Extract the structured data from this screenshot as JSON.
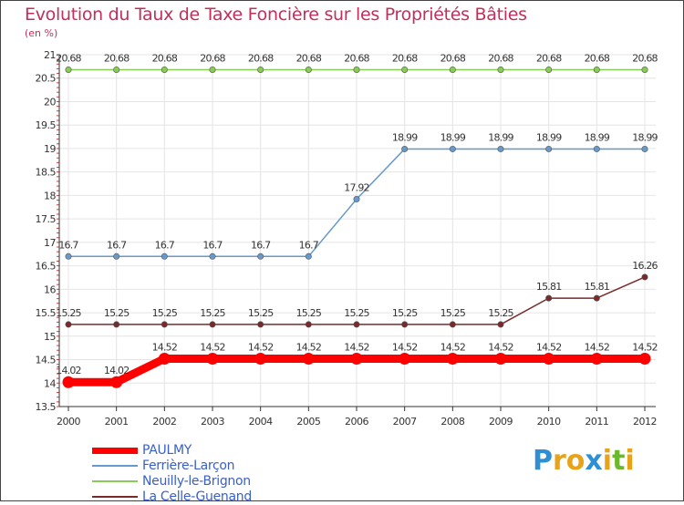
{
  "title": "Evolution du Taux de Taxe Foncière sur les Propriétés Bâties",
  "subtitle": "(en %)",
  "logo": {
    "letters": [
      "P",
      "r",
      "o",
      "x",
      "i",
      "t",
      "i"
    ],
    "colors": [
      "#2e8fd4",
      "#e8a318",
      "#e8a318",
      "#2e8fd4",
      "#e8a318",
      "#6cb92b",
      "#e8a318"
    ]
  },
  "chart_data": {
    "type": "line",
    "title": "Evolution du Taux de Taxe Foncière sur les Propriétés Bâties",
    "ylabel": "(en %)",
    "xlabel": "",
    "ylim": [
      13.5,
      21
    ],
    "yticks": [
      "13.5",
      "14",
      "14.5",
      "15",
      "15.5",
      "16",
      "16.5",
      "17",
      "17.5",
      "18",
      "18.5",
      "19",
      "19.5",
      "20",
      "20.5",
      "21"
    ],
    "x": [
      "2000",
      "2001",
      "2002",
      "2003",
      "2004",
      "2005",
      "2006",
      "2007",
      "2008",
      "2009",
      "2010",
      "2011",
      "2012"
    ],
    "series": [
      {
        "name": "PAULMY",
        "color": "#ff0000",
        "values": [
          14.02,
          14.02,
          14.52,
          14.52,
          14.52,
          14.52,
          14.52,
          14.52,
          14.52,
          14.52,
          14.52,
          14.52,
          14.52
        ],
        "labels": [
          "14.02",
          "14.02",
          "14.52",
          "14.52",
          "14.52",
          "14.52",
          "14.52",
          "14.52",
          "14.52",
          "14.52",
          "14.52",
          "14.52",
          "14.52"
        ]
      },
      {
        "name": "Ferrière-Larçon",
        "color": "#6699cc",
        "values": [
          16.7,
          16.7,
          16.7,
          16.7,
          16.7,
          16.7,
          17.92,
          18.99,
          18.99,
          18.99,
          18.99,
          18.99,
          18.99
        ],
        "labels": [
          "16.7",
          "16.7",
          "16.7",
          "16.7",
          "16.7",
          "16.7",
          "17.92",
          "18.99",
          "18.99",
          "18.99",
          "18.99",
          "18.99",
          "18.99"
        ]
      },
      {
        "name": "Neuilly-le-Brignon",
        "color": "#88cc55",
        "values": [
          20.68,
          20.68,
          20.68,
          20.68,
          20.68,
          20.68,
          20.68,
          20.68,
          20.68,
          20.68,
          20.68,
          20.68,
          20.68
        ],
        "labels": [
          "20.68",
          "20.68",
          "20.68",
          "20.68",
          "20.68",
          "20.68",
          "20.68",
          "20.68",
          "20.68",
          "20.68",
          "20.68",
          "20.68",
          "20.68"
        ]
      },
      {
        "name": "La Celle-Guenand",
        "color": "#7a2a2a",
        "values": [
          15.25,
          15.25,
          15.25,
          15.25,
          15.25,
          15.25,
          15.25,
          15.25,
          15.25,
          15.25,
          15.81,
          15.81,
          16.26
        ],
        "labels": [
          "15.25",
          "15.25",
          "15.25",
          "15.25",
          "15.25",
          "15.25",
          "15.25",
          "15.25",
          "15.25",
          "15.25",
          "15.81",
          "15.81",
          "16.26"
        ]
      }
    ]
  }
}
